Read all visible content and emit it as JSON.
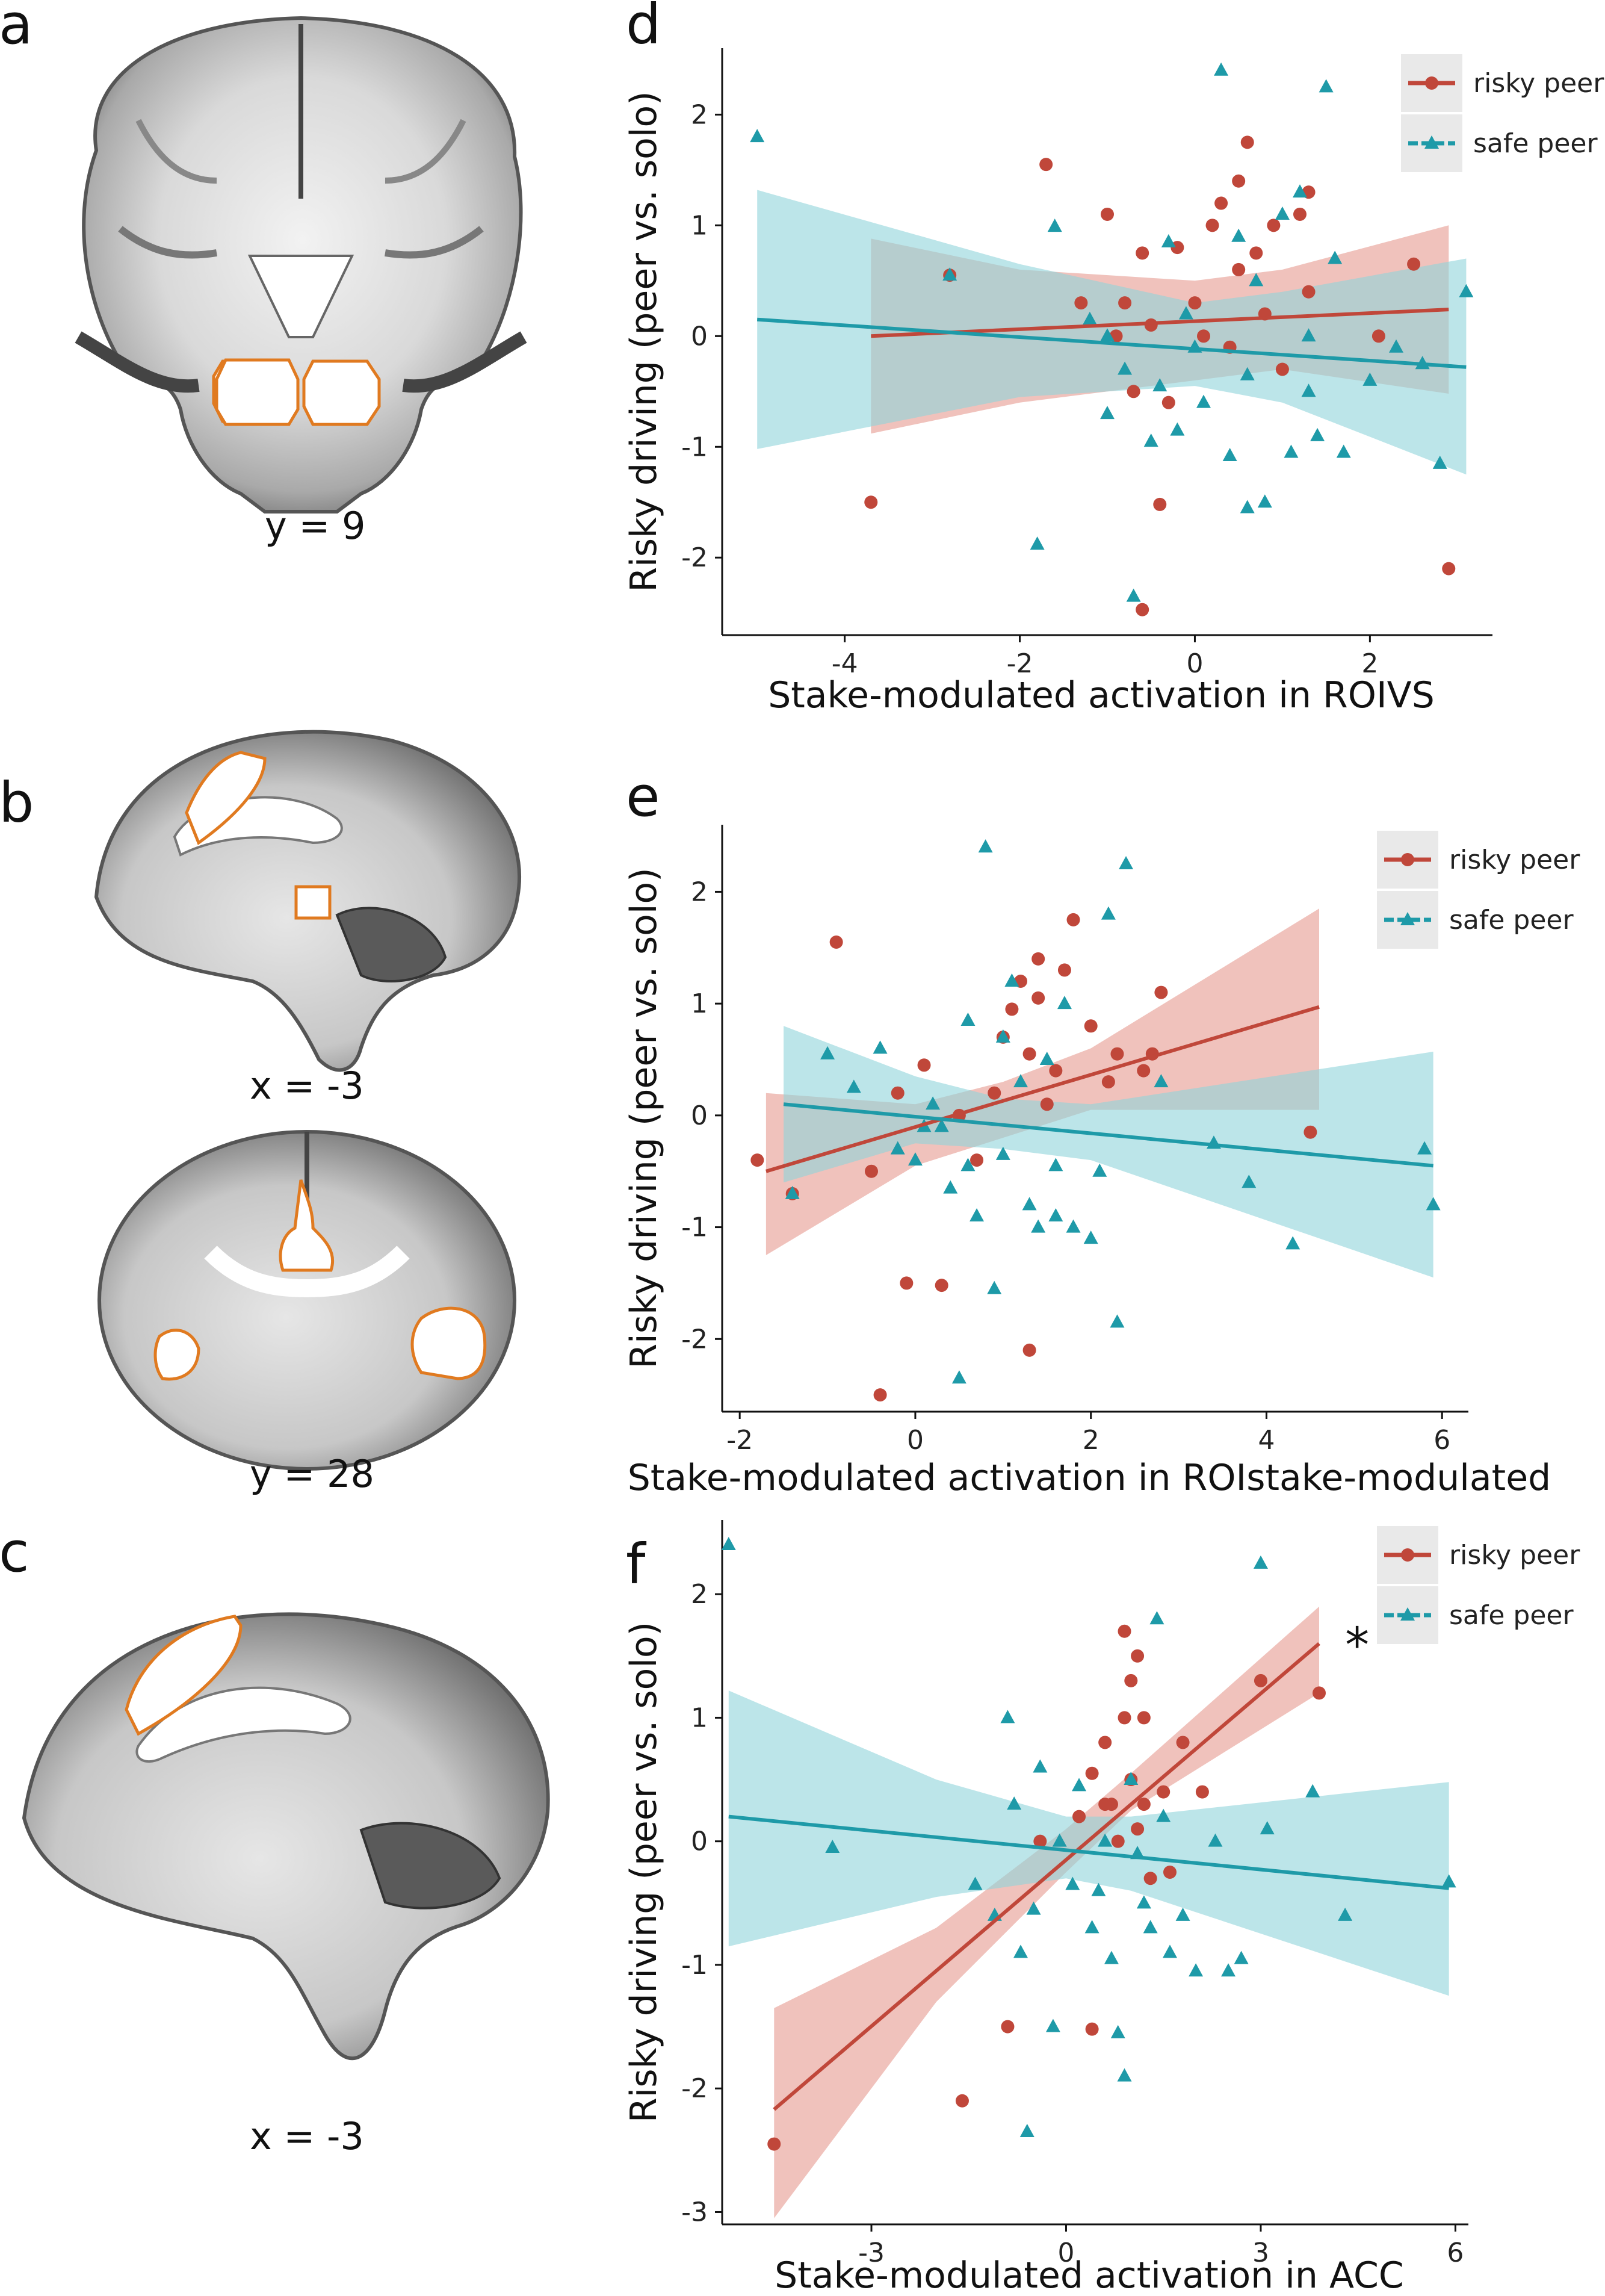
{
  "panels": {
    "a": {
      "letter": "a",
      "coord": "y = 9"
    },
    "b": {
      "letter": "b",
      "coord_top": "x = -3",
      "coord_bottom": "y = 28"
    },
    "c": {
      "letter": "c",
      "coord": "x = -3"
    }
  },
  "colors": {
    "risky": "#c0473a",
    "safe": "#1e9aa8",
    "risky_band": "#e9a8a0",
    "safe_band": "#8fd3da",
    "overlap": "#6e7b7b"
  },
  "legend": {
    "risky": "risky peer",
    "safe": "safe peer"
  },
  "chart_data": [
    {
      "id": "d",
      "letter": "d",
      "type": "scatter",
      "ylabel": "Risky driving (peer vs. solo)",
      "xlabel": "Stake-modulated activation in ROIVS",
      "xlim": [
        -5.4,
        3.4
      ],
      "ylim": [
        -2.7,
        2.6
      ],
      "xticks": [
        -4,
        -2,
        0,
        2
      ],
      "yticks": [
        -2,
        -1,
        0,
        1,
        2
      ],
      "series": [
        {
          "name": "risky peer",
          "fit": {
            "x": [
              -3.7,
              2.9
            ],
            "y": [
              0.0,
              0.24
            ]
          },
          "band": {
            "x": [
              -3.7,
              -2,
              0,
              1,
              2.9
            ],
            "upper": [
              0.88,
              0.6,
              0.5,
              0.6,
              1.0
            ],
            "lower": [
              -0.88,
              -0.6,
              -0.4,
              -0.3,
              -0.52
            ]
          },
          "points": [
            [
              -3.7,
              -1.5
            ],
            [
              -2.8,
              0.55
            ],
            [
              -1.7,
              1.55
            ],
            [
              -1.3,
              0.3
            ],
            [
              -1.0,
              1.1
            ],
            [
              -0.9,
              0.0
            ],
            [
              -0.7,
              -0.5
            ],
            [
              -0.6,
              0.75
            ],
            [
              -0.5,
              0.1
            ],
            [
              -0.4,
              -1.52
            ],
            [
              -0.3,
              -0.6
            ],
            [
              -0.2,
              0.8
            ],
            [
              0.0,
              0.3
            ],
            [
              0.1,
              0.0
            ],
            [
              0.2,
              1.0
            ],
            [
              0.3,
              1.2
            ],
            [
              0.4,
              -0.1
            ],
            [
              0.5,
              0.6
            ],
            [
              0.5,
              1.4
            ],
            [
              0.6,
              1.75
            ],
            [
              0.8,
              0.2
            ],
            [
              0.9,
              1.0
            ],
            [
              1.0,
              -0.3
            ],
            [
              1.2,
              1.1
            ],
            [
              1.3,
              0.4
            ],
            [
              1.3,
              1.3
            ],
            [
              2.1,
              0.0
            ],
            [
              2.5,
              0.65
            ],
            [
              2.9,
              -2.1
            ],
            [
              -0.6,
              -2.47
            ],
            [
              -0.8,
              0.3
            ],
            [
              0.7,
              0.75
            ]
          ]
        },
        {
          "name": "safe peer",
          "fit": {
            "x": [
              -5.0,
              3.1
            ],
            "y": [
              0.15,
              -0.28
            ]
          },
          "band": {
            "x": [
              -5.0,
              -2,
              0,
              1,
              3.1
            ],
            "upper": [
              1.32,
              0.65,
              0.3,
              0.4,
              0.7
            ],
            "lower": [
              -1.02,
              -0.55,
              -0.45,
              -0.6,
              -1.25
            ]
          },
          "points": [
            [
              -5.0,
              1.8
            ],
            [
              -2.8,
              0.55
            ],
            [
              -1.8,
              -1.88
            ],
            [
              -1.6,
              0.99
            ],
            [
              -1.2,
              0.15
            ],
            [
              -1.0,
              -0.7
            ],
            [
              -0.8,
              -0.3
            ],
            [
              -0.7,
              -2.35
            ],
            [
              -0.5,
              -0.95
            ],
            [
              -0.4,
              -0.45
            ],
            [
              -0.3,
              0.85
            ],
            [
              -0.2,
              -0.85
            ],
            [
              0.0,
              -0.1
            ],
            [
              0.1,
              -0.6
            ],
            [
              0.3,
              2.4
            ],
            [
              0.4,
              -1.08
            ],
            [
              0.5,
              0.9
            ],
            [
              0.6,
              -1.55
            ],
            [
              0.6,
              -0.35
            ],
            [
              0.7,
              0.5
            ],
            [
              0.8,
              -1.5
            ],
            [
              1.0,
              1.1
            ],
            [
              1.1,
              -1.05
            ],
            [
              1.2,
              1.3
            ],
            [
              1.3,
              -0.5
            ],
            [
              1.4,
              -0.9
            ],
            [
              1.5,
              2.25
            ],
            [
              1.6,
              0.7
            ],
            [
              1.7,
              -1.05
            ],
            [
              2.0,
              -0.4
            ],
            [
              2.3,
              -0.1
            ],
            [
              2.6,
              -0.25
            ],
            [
              2.8,
              -1.15
            ],
            [
              3.1,
              0.4
            ],
            [
              -1.0,
              0.0
            ],
            [
              -0.1,
              0.2
            ],
            [
              1.3,
              0.0
            ]
          ]
        }
      ]
    },
    {
      "id": "e",
      "letter": "e",
      "type": "scatter",
      "ylabel": "Risky driving (peer vs. solo)",
      "xlabel": "Stake-modulated activation in ROIstake-modulated",
      "xlim": [
        -2.2,
        6.3
      ],
      "ylim": [
        -2.65,
        2.6
      ],
      "xticks": [
        -2,
        0,
        2,
        4,
        6
      ],
      "yticks": [
        -2,
        -1,
        0,
        1,
        2
      ],
      "series": [
        {
          "name": "risky peer",
          "fit": {
            "x": [
              -1.7,
              4.6
            ],
            "y": [
              -0.5,
              0.97
            ]
          },
          "band": {
            "x": [
              -1.7,
              0,
              1,
              2,
              4.6
            ],
            "upper": [
              0.2,
              0.1,
              0.3,
              0.6,
              1.85
            ],
            "lower": [
              -1.25,
              -0.45,
              -0.2,
              0.05,
              0.05
            ]
          },
          "points": [
            [
              -1.8,
              -0.4
            ],
            [
              -1.4,
              -0.7
            ],
            [
              -0.9,
              1.55
            ],
            [
              -0.5,
              -0.5
            ],
            [
              -0.4,
              -2.5
            ],
            [
              -0.2,
              0.2
            ],
            [
              -0.1,
              -1.5
            ],
            [
              0.1,
              0.45
            ],
            [
              0.3,
              -1.52
            ],
            [
              0.5,
              0.0
            ],
            [
              0.7,
              -0.4
            ],
            [
              1.0,
              0.7
            ],
            [
              1.1,
              0.95
            ],
            [
              1.2,
              1.2
            ],
            [
              1.3,
              -2.1
            ],
            [
              1.3,
              0.55
            ],
            [
              1.4,
              1.05
            ],
            [
              1.4,
              1.4
            ],
            [
              1.5,
              0.1
            ],
            [
              1.6,
              0.4
            ],
            [
              1.7,
              1.3
            ],
            [
              1.8,
              1.75
            ],
            [
              2.0,
              0.8
            ],
            [
              2.2,
              0.3
            ],
            [
              2.3,
              0.55
            ],
            [
              2.6,
              0.4
            ],
            [
              2.7,
              0.55
            ],
            [
              2.8,
              1.1
            ],
            [
              4.5,
              -0.15
            ],
            [
              0.9,
              0.2
            ]
          ]
        },
        {
          "name": "safe peer",
          "fit": {
            "x": [
              -1.5,
              5.9
            ],
            "y": [
              0.1,
              -0.45
            ]
          },
          "band": {
            "x": [
              -1.5,
              0,
              1,
              2,
              5.9
            ],
            "upper": [
              0.8,
              0.35,
              0.15,
              0.1,
              0.57
            ],
            "lower": [
              -0.6,
              -0.25,
              -0.3,
              -0.4,
              -1.45
            ]
          },
          "points": [
            [
              -1.4,
              -0.7
            ],
            [
              -1.0,
              0.55
            ],
            [
              -0.7,
              0.25
            ],
            [
              -0.4,
              0.6
            ],
            [
              -0.2,
              -0.3
            ],
            [
              0.0,
              -0.4
            ],
            [
              0.2,
              0.1
            ],
            [
              0.3,
              -0.1
            ],
            [
              0.4,
              -0.65
            ],
            [
              0.5,
              -2.35
            ],
            [
              0.6,
              -0.45
            ],
            [
              0.6,
              0.85
            ],
            [
              0.7,
              -0.9
            ],
            [
              0.8,
              2.4
            ],
            [
              0.9,
              -1.55
            ],
            [
              1.0,
              0.7
            ],
            [
              1.0,
              -0.35
            ],
            [
              1.1,
              1.2
            ],
            [
              1.2,
              0.3
            ],
            [
              1.3,
              -0.8
            ],
            [
              1.4,
              -1.0
            ],
            [
              1.5,
              0.5
            ],
            [
              1.6,
              -0.45
            ],
            [
              1.6,
              -0.9
            ],
            [
              1.7,
              1.0
            ],
            [
              1.8,
              -1.0
            ],
            [
              2.0,
              -1.1
            ],
            [
              2.1,
              -0.5
            ],
            [
              2.2,
              1.8
            ],
            [
              2.3,
              -1.85
            ],
            [
              2.4,
              2.25
            ],
            [
              2.8,
              0.3
            ],
            [
              3.4,
              -0.25
            ],
            [
              3.8,
              -0.6
            ],
            [
              4.3,
              -1.15
            ],
            [
              5.8,
              -0.3
            ],
            [
              5.9,
              -0.8
            ],
            [
              0.1,
              -0.1
            ]
          ]
        }
      ]
    },
    {
      "id": "f",
      "letter": "f",
      "type": "scatter",
      "ylabel": "Risky driving (peer vs. solo)",
      "xlabel": "Stake-modulated activation in ACC",
      "xlim": [
        -5.3,
        6.2
      ],
      "ylim": [
        -3.1,
        2.6
      ],
      "xticks": [
        -3,
        0,
        3,
        6
      ],
      "yticks": [
        -3,
        -2,
        -1,
        0,
        1,
        2
      ],
      "annotation": "*",
      "series": [
        {
          "name": "risky peer",
          "fit": {
            "x": [
              -4.5,
              3.9
            ],
            "y": [
              -2.17,
              1.6
            ]
          },
          "band": {
            "x": [
              -4.5,
              -2,
              0,
              1,
              3.9
            ],
            "upper": [
              -1.35,
              -0.7,
              0.1,
              0.55,
              1.9
            ],
            "lower": [
              -3.05,
              -1.3,
              -0.25,
              0.25,
              1.2
            ]
          },
          "points": [
            [
              -4.5,
              -2.45
            ],
            [
              -1.6,
              -2.1
            ],
            [
              -0.9,
              -1.5
            ],
            [
              -0.4,
              0.0
            ],
            [
              0.2,
              0.2
            ],
            [
              0.4,
              -1.52
            ],
            [
              0.4,
              0.55
            ],
            [
              0.6,
              0.8
            ],
            [
              0.7,
              0.3
            ],
            [
              0.8,
              0.0
            ],
            [
              0.9,
              1.0
            ],
            [
              0.9,
              1.7
            ],
            [
              1.0,
              1.3
            ],
            [
              1.0,
              0.5
            ],
            [
              1.1,
              1.5
            ],
            [
              1.1,
              0.1
            ],
            [
              1.2,
              1.0
            ],
            [
              1.2,
              0.3
            ],
            [
              1.3,
              -0.3
            ],
            [
              1.5,
              0.4
            ],
            [
              1.6,
              -0.25
            ],
            [
              1.8,
              0.8
            ],
            [
              2.1,
              0.4
            ],
            [
              3.0,
              1.3
            ],
            [
              3.9,
              1.2
            ],
            [
              0.6,
              0.3
            ]
          ]
        },
        {
          "name": "safe peer",
          "fit": {
            "x": [
              -5.2,
              5.9
            ],
            "y": [
              0.2,
              -0.38
            ]
          },
          "band": {
            "x": [
              -5.2,
              -2,
              0,
              1,
              5.9
            ],
            "upper": [
              1.22,
              0.5,
              0.2,
              0.2,
              0.48
            ],
            "lower": [
              -0.85,
              -0.45,
              -0.3,
              -0.4,
              -1.25
            ]
          },
          "points": [
            [
              -5.2,
              2.4
            ],
            [
              -3.6,
              -0.05
            ],
            [
              -1.4,
              -0.35
            ],
            [
              -1.1,
              -0.6
            ],
            [
              -0.9,
              1.0
            ],
            [
              -0.8,
              0.3
            ],
            [
              -0.7,
              -0.9
            ],
            [
              -0.6,
              -2.35
            ],
            [
              -0.5,
              -0.55
            ],
            [
              -0.4,
              0.6
            ],
            [
              -0.2,
              -1.5
            ],
            [
              -0.1,
              0.0
            ],
            [
              0.1,
              -0.35
            ],
            [
              0.2,
              0.45
            ],
            [
              0.4,
              -0.7
            ],
            [
              0.5,
              -0.4
            ],
            [
              0.6,
              0.0
            ],
            [
              0.7,
              -0.95
            ],
            [
              0.8,
              -1.55
            ],
            [
              0.9,
              -1.9
            ],
            [
              1.0,
              0.5
            ],
            [
              1.1,
              -0.1
            ],
            [
              1.2,
              -0.5
            ],
            [
              1.3,
              -0.7
            ],
            [
              1.4,
              1.8
            ],
            [
              1.6,
              -0.9
            ],
            [
              1.8,
              -0.6
            ],
            [
              2.0,
              -1.05
            ],
            [
              2.3,
              0.0
            ],
            [
              2.5,
              -1.05
            ],
            [
              2.7,
              -0.95
            ],
            [
              3.0,
              2.25
            ],
            [
              3.1,
              0.1
            ],
            [
              3.8,
              0.4
            ],
            [
              4.3,
              -0.6
            ],
            [
              5.9,
              -0.33
            ],
            [
              1.5,
              0.2
            ]
          ]
        }
      ]
    }
  ]
}
